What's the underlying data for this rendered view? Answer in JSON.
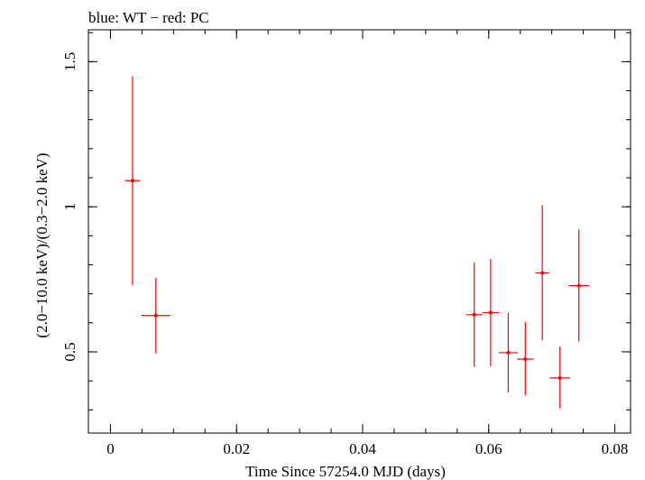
{
  "chart_data": {
    "type": "scatter",
    "title": "blue: WT − red: PC",
    "xlabel": "Time Since 57254.0 MJD (days)",
    "ylabel": "(2.0−10.0 keV)/(0.3−2.0 keV)",
    "xlim": [
      -0.0035,
      0.0825
    ],
    "ylim": [
      0.22,
      1.61
    ],
    "x_ticks": [
      0,
      0.02,
      0.04,
      0.06,
      0.08
    ],
    "x_tick_labels": [
      "0",
      "0.02",
      "0.04",
      "0.06",
      "0.08"
    ],
    "x_minor_step": 0.005,
    "y_ticks": [
      0.5,
      1,
      1.5
    ],
    "y_tick_labels": [
      "0.5",
      "1",
      "1.5"
    ],
    "y_minor_step": 0.1,
    "series": [
      {
        "name": "PC",
        "color": "#ff0000",
        "points": [
          {
            "x": 0.0035,
            "y": 1.09,
            "xerr": 0.0012,
            "ylo": 0.73,
            "yhi": 1.45
          },
          {
            "x": 0.0072,
            "y": 0.625,
            "xerr": 0.0023,
            "ylo": 0.495,
            "yhi": 0.755
          },
          {
            "x": 0.0577,
            "y": 0.628,
            "xerr": 0.0013,
            "ylo": 0.448,
            "yhi": 0.808
          },
          {
            "x": 0.0603,
            "y": 0.635,
            "xerr": 0.0013,
            "ylo": 0.45,
            "yhi": 0.82
          },
          {
            "x": 0.0631,
            "y": 0.497,
            "xerr": 0.0015,
            "ylo": 0.36,
            "yhi": 0.635
          },
          {
            "x": 0.0658,
            "y": 0.475,
            "xerr": 0.0013,
            "ylo": 0.35,
            "yhi": 0.603
          },
          {
            "x": 0.0685,
            "y": 0.772,
            "xerr": 0.0011,
            "ylo": 0.54,
            "yhi": 1.005
          },
          {
            "x": 0.0713,
            "y": 0.41,
            "xerr": 0.0016,
            "ylo": 0.305,
            "yhi": 0.518
          },
          {
            "x": 0.0743,
            "y": 0.728,
            "xerr": 0.0016,
            "ylo": 0.535,
            "yhi": 0.922
          }
        ]
      }
    ]
  }
}
